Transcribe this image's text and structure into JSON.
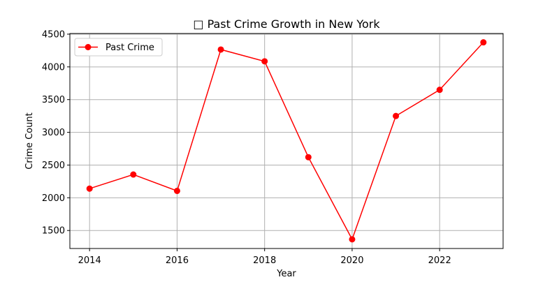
{
  "chart_data": {
    "type": "line",
    "title": "□ Past Crime Growth in New York",
    "xlabel": "Year",
    "ylabel": "Crime Count",
    "x": [
      2014,
      2015,
      2016,
      2017,
      2018,
      2019,
      2020,
      2021,
      2022,
      2023
    ],
    "series": [
      {
        "name": "Past Crime",
        "color": "#ff0000",
        "marker": "circle",
        "values": [
          2140,
          2355,
          2105,
          4265,
          4085,
          2620,
          1365,
          3250,
          3650,
          4375
        ]
      }
    ],
    "xlim": [
      2013.55,
      2023.45
    ],
    "ylim": [
      1225,
      4510
    ],
    "xticks": [
      2014,
      2016,
      2018,
      2020,
      2022
    ],
    "yticks": [
      1500,
      2000,
      2500,
      3000,
      3500,
      4000,
      4500
    ],
    "grid": true,
    "legend_position": "top-left"
  }
}
